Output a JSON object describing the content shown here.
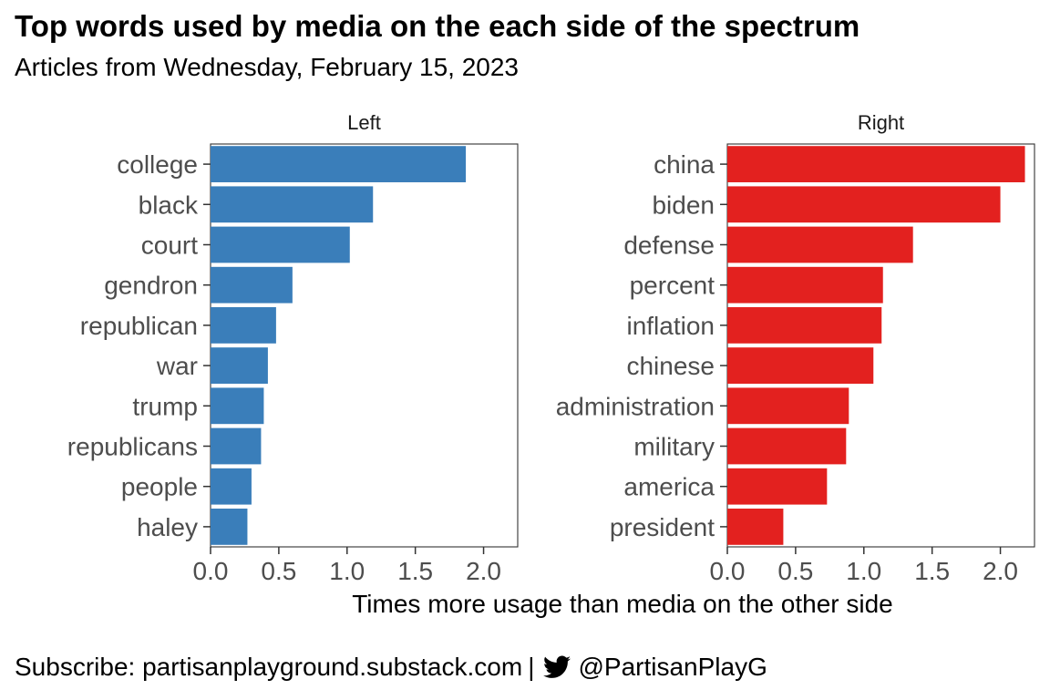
{
  "chart_data": {
    "type": "bar",
    "orientation": "horizontal",
    "title": "Top words used by media on the each side of the spectrum",
    "subtitle": "Articles from Wednesday, February 15, 2023",
    "xlabel": "Times more usage than media on the other side",
    "ylabel": "",
    "xlim": [
      0,
      2.25
    ],
    "xticks": [
      0.0,
      0.5,
      1.0,
      1.5,
      2.0
    ],
    "xtick_labels": [
      "0.0",
      "0.5",
      "1.0",
      "1.5",
      "2.0"
    ],
    "panels": [
      {
        "name": "Left",
        "color": "#3A7EBA",
        "categories": [
          "college",
          "black",
          "court",
          "gendron",
          "republican",
          "war",
          "trump",
          "republicans",
          "people",
          "haley"
        ],
        "values": [
          1.87,
          1.19,
          1.02,
          0.6,
          0.48,
          0.42,
          0.39,
          0.37,
          0.3,
          0.27
        ]
      },
      {
        "name": "Right",
        "color": "#E3211F",
        "categories": [
          "china",
          "biden",
          "defense",
          "percent",
          "inflation",
          "chinese",
          "administration",
          "military",
          "america",
          "president"
        ],
        "values": [
          2.18,
          2.0,
          1.36,
          1.14,
          1.13,
          1.07,
          0.89,
          0.87,
          0.73,
          0.41
        ]
      }
    ]
  },
  "caption": {
    "prefix": "Subscribe: partisanplayground.substack.com",
    "separator": "|",
    "handle": "@PartisanPlayG",
    "icon": "twitter-bird-icon"
  }
}
